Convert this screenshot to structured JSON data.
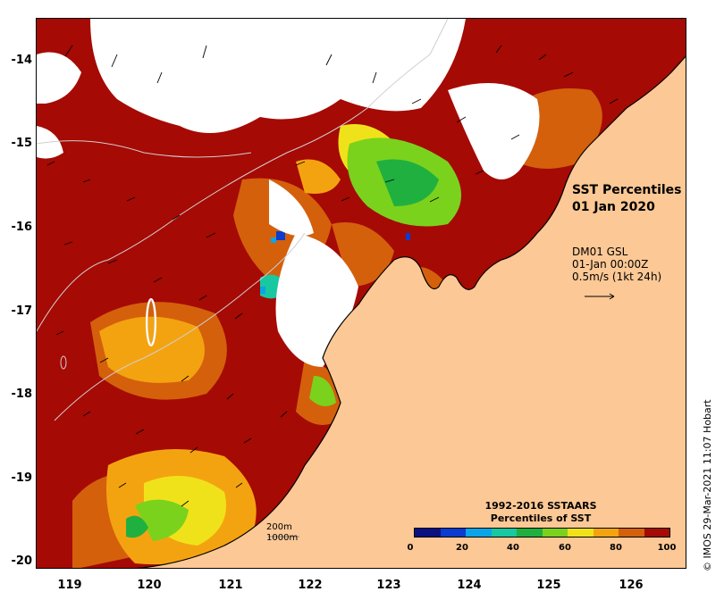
{
  "title": {
    "line1": "SST Percentiles",
    "line2": "01 Jan 2020"
  },
  "model": {
    "line1": "DM01 GSL",
    "line2": "01-Jan 00:00Z",
    "line3": "0.5m/s (1kt 24h)"
  },
  "scale": {
    "line1": "200m",
    "line2": "1000m"
  },
  "legend": {
    "title1": "1992-2016 SSTAARS",
    "title2": "Percentiles of SST",
    "ticks": [
      "0",
      "20",
      "40",
      "60",
      "80",
      "100"
    ],
    "colors": [
      "#0a1082",
      "#0a3ccf",
      "#0aa4e8",
      "#19c8a0",
      "#20b040",
      "#7ad21c",
      "#f0e21a",
      "#f4a310",
      "#d4600c",
      "#a50a05"
    ]
  },
  "axes": {
    "y_labels": [
      "-14",
      "-15",
      "-16",
      "-17",
      "-18",
      "-19",
      "-20"
    ],
    "x_labels": [
      "119",
      "120",
      "121",
      "122",
      "123",
      "124",
      "125",
      "126"
    ]
  },
  "colors": {
    "land": "#fcc895",
    "no_data": "#ffffff",
    "warm": "#a50a05"
  },
  "credit": "© IMOS 29-Mar-2021 11:07 Hobart"
}
